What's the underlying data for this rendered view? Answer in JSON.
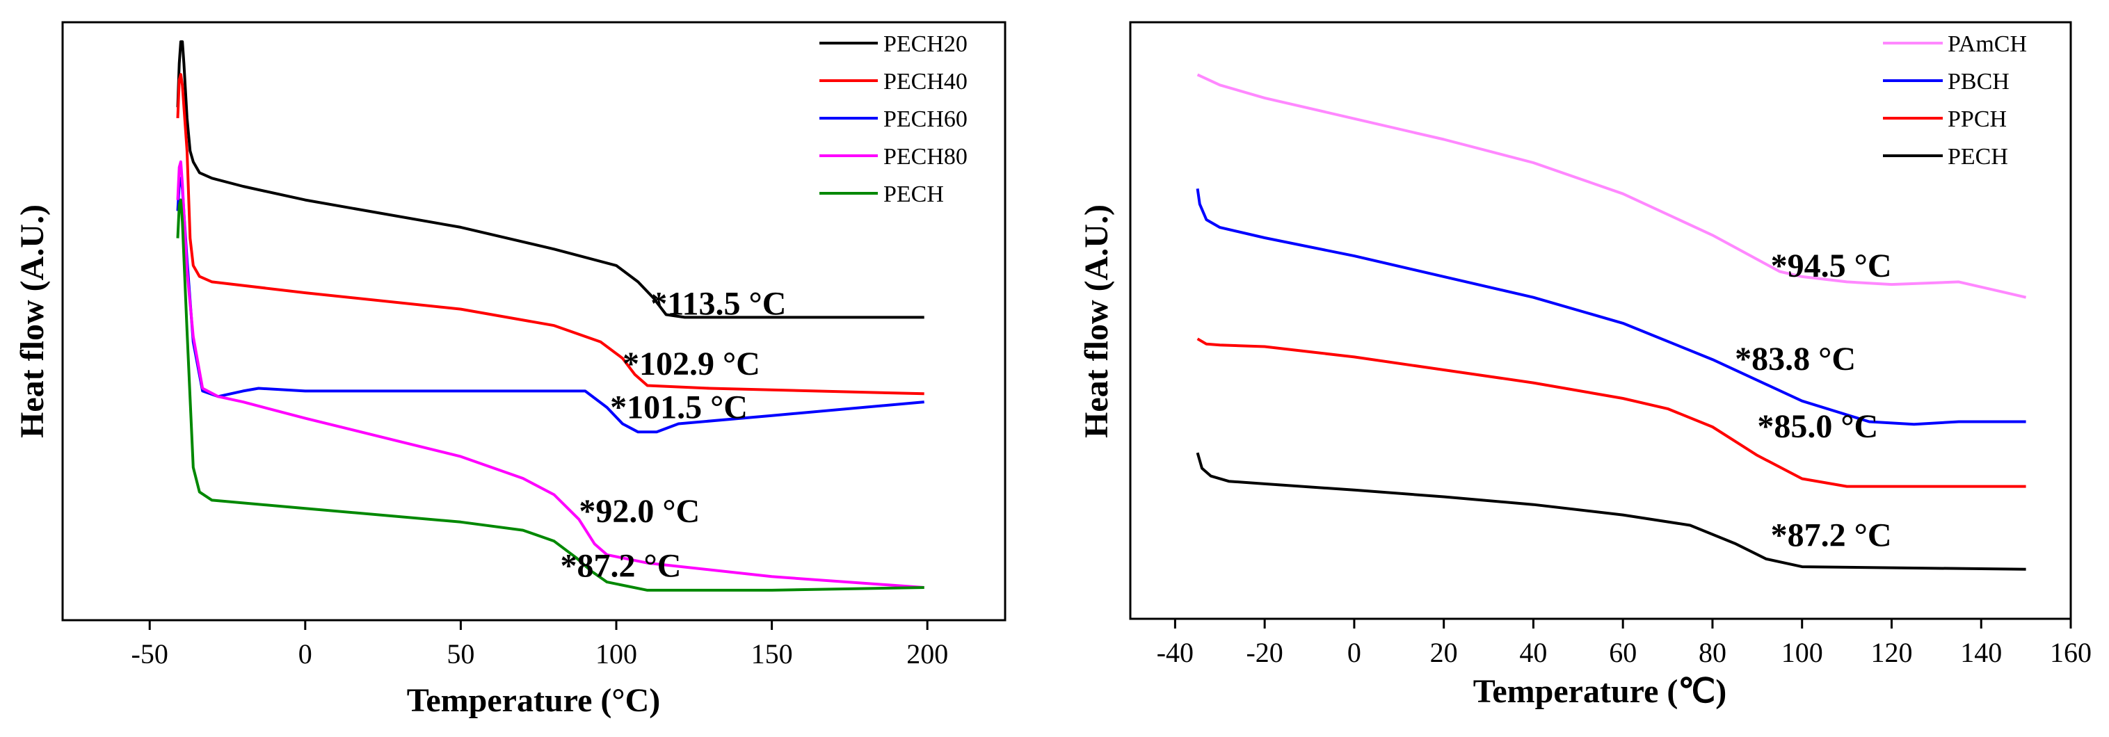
{
  "chart_data": [
    {
      "type": "line",
      "xlabel": "Temperature (°C)",
      "ylabel": "Heat flow (A.U.)",
      "xlim": [
        -78,
        225
      ],
      "xticks": [
        -50,
        0,
        50,
        100,
        150,
        200
      ],
      "ylim": [
        0,
        100
      ],
      "legend": "top-right",
      "series": [
        {
          "name": "PECH20",
          "color": "#000000",
          "points": [
            [
              -41,
              88
            ],
            [
              -40.5,
              96
            ],
            [
              -40,
              100
            ],
            [
              -39.5,
              100
            ],
            [
              -39,
              96
            ],
            [
              -38,
              86
            ],
            [
              -37,
              80
            ],
            [
              -36,
              78
            ],
            [
              -34,
              76
            ],
            [
              -30,
              75
            ],
            [
              -20,
              73.5
            ],
            [
              0,
              71
            ],
            [
              20,
              69
            ],
            [
              50,
              66
            ],
            [
              80,
              62
            ],
            [
              100,
              59
            ],
            [
              107,
              56
            ],
            [
              112,
              53
            ],
            [
              116,
              50
            ],
            [
              122,
              49.5
            ],
            [
              150,
              49.5
            ],
            [
              199,
              49.5
            ]
          ]
        },
        {
          "name": "PECH40",
          "color": "#ff0000",
          "points": [
            [
              -41,
              86
            ],
            [
              -40.5,
              93
            ],
            [
              -40,
              94
            ],
            [
              -39.5,
              92
            ],
            [
              -38,
              80
            ],
            [
              -37,
              64
            ],
            [
              -36,
              59
            ],
            [
              -34,
              57
            ],
            [
              -30,
              56
            ],
            [
              0,
              54
            ],
            [
              50,
              51
            ],
            [
              80,
              48
            ],
            [
              95,
              45
            ],
            [
              102,
              42
            ],
            [
              106,
              39
            ],
            [
              110,
              37
            ],
            [
              130,
              36.5
            ],
            [
              199,
              35.5
            ]
          ]
        },
        {
          "name": "PECH60",
          "color": "#0000ff",
          "points": [
            [
              -41,
              69
            ],
            [
              -40.5,
              74
            ],
            [
              -40,
              75
            ],
            [
              -39.5,
              73
            ],
            [
              -38,
              60
            ],
            [
              -36,
              45
            ],
            [
              -33,
              36
            ],
            [
              -28,
              35
            ],
            [
              -20,
              36
            ],
            [
              -15,
              36.5
            ],
            [
              0,
              36
            ],
            [
              50,
              36
            ],
            [
              90,
              36
            ],
            [
              97,
              33
            ],
            [
              102,
              30
            ],
            [
              107,
              28.5
            ],
            [
              113,
              28.5
            ],
            [
              120,
              30
            ],
            [
              150,
              31.5
            ],
            [
              199,
              34
            ]
          ]
        },
        {
          "name": "PECH80",
          "color": "#ff00ff",
          "points": [
            [
              -41,
              71
            ],
            [
              -40.5,
              77
            ],
            [
              -40,
              78
            ],
            [
              -39.5,
              74
            ],
            [
              -38,
              58
            ],
            [
              -36,
              46
            ],
            [
              -33,
              36.5
            ],
            [
              -28,
              35
            ],
            [
              -20,
              34
            ],
            [
              0,
              31
            ],
            [
              50,
              24
            ],
            [
              70,
              20
            ],
            [
              80,
              17
            ],
            [
              88,
              12.5
            ],
            [
              93,
              8
            ],
            [
              97,
              6
            ],
            [
              110,
              4.5
            ],
            [
              150,
              2
            ],
            [
              199,
              0
            ]
          ]
        },
        {
          "name": "PECH",
          "color": "#008800",
          "points": [
            [
              -41,
              64
            ],
            [
              -40.5,
              70
            ],
            [
              -40,
              71
            ],
            [
              -39.5,
              67
            ],
            [
              -38,
              47
            ],
            [
              -36,
              22
            ],
            [
              -34,
              17.5
            ],
            [
              -30,
              16
            ],
            [
              0,
              14.5
            ],
            [
              50,
              12
            ],
            [
              70,
              10.5
            ],
            [
              80,
              8.5
            ],
            [
              87,
              5.5
            ],
            [
              92,
              3
            ],
            [
              97,
              1
            ],
            [
              110,
              -0.5
            ],
            [
              150,
              -0.5
            ],
            [
              199,
              0
            ]
          ]
        }
      ],
      "annotations": [
        {
          "text": "*113.5 °C",
          "x": 111,
          "y": 50
        },
        {
          "text": "*102.9 °C",
          "x": 102,
          "y": 39
        },
        {
          "text": "*101.5 °C",
          "x": 98,
          "y": 31
        },
        {
          "text": "*92.0 °C",
          "x": 88,
          "y": 12
        },
        {
          "text": "*87.2 °C",
          "x": 82,
          "y": 2
        }
      ]
    },
    {
      "type": "line",
      "xlabel": "Temperature (℃)",
      "ylabel": "Heat flow (A.U.)",
      "xlim": [
        -50,
        160
      ],
      "xticks": [
        -40,
        -20,
        0,
        20,
        40,
        60,
        80,
        100,
        120,
        140,
        160
      ],
      "ylim": [
        0,
        100
      ],
      "legend": "top-right",
      "series": [
        {
          "name": "PAmCH",
          "color": "#ff88ff",
          "points": [
            [
              -35,
              97
            ],
            [
              -30,
              95
            ],
            [
              -20,
              92.5
            ],
            [
              0,
              88.5
            ],
            [
              20,
              84.5
            ],
            [
              40,
              80
            ],
            [
              60,
              74
            ],
            [
              80,
              66
            ],
            [
              95,
              59
            ],
            [
              100,
              58
            ],
            [
              110,
              57
            ],
            [
              120,
              56.5
            ],
            [
              135,
              57
            ],
            [
              145,
              55
            ],
            [
              150,
              54
            ]
          ]
        },
        {
          "name": "PBCH",
          "color": "#0000ff",
          "points": [
            [
              -35,
              75
            ],
            [
              -34.5,
              72
            ],
            [
              -33,
              69
            ],
            [
              -30,
              67.5
            ],
            [
              -20,
              65.5
            ],
            [
              0,
              62
            ],
            [
              20,
              58
            ],
            [
              40,
              54
            ],
            [
              60,
              49
            ],
            [
              80,
              42
            ],
            [
              100,
              34
            ],
            [
              115,
              30
            ],
            [
              125,
              29.5
            ],
            [
              135,
              30
            ],
            [
              150,
              30
            ]
          ]
        },
        {
          "name": "PPCH",
          "color": "#ff0000",
          "points": [
            [
              -35,
              46
            ],
            [
              -33,
              45
            ],
            [
              -30,
              44.8
            ],
            [
              -20,
              44.5
            ],
            [
              0,
              42.5
            ],
            [
              20,
              40
            ],
            [
              40,
              37.5
            ],
            [
              60,
              34.5
            ],
            [
              70,
              32.5
            ],
            [
              80,
              29
            ],
            [
              90,
              23.5
            ],
            [
              100,
              19
            ],
            [
              110,
              17.5
            ],
            [
              150,
              17.5
            ]
          ]
        },
        {
          "name": "PECH",
          "color": "#000000",
          "points": [
            [
              -35,
              24
            ],
            [
              -34,
              21
            ],
            [
              -32,
              19.5
            ],
            [
              -28,
              18.5
            ],
            [
              -20,
              18
            ],
            [
              0,
              16.8
            ],
            [
              20,
              15.5
            ],
            [
              40,
              14
            ],
            [
              60,
              12
            ],
            [
              75,
              10
            ],
            [
              85,
              6.5
            ],
            [
              92,
              3.5
            ],
            [
              100,
              2
            ],
            [
              150,
              1.5
            ]
          ]
        }
      ],
      "annotations": [
        {
          "text": "*94.5 °C",
          "x": 93,
          "y": 58
        },
        {
          "text": "*83.8 °C",
          "x": 85,
          "y": 40
        },
        {
          "text": "*85.0 °C",
          "x": 90,
          "y": 27
        },
        {
          "text": "*87.2 °C",
          "x": 93,
          "y": 6
        }
      ]
    }
  ]
}
